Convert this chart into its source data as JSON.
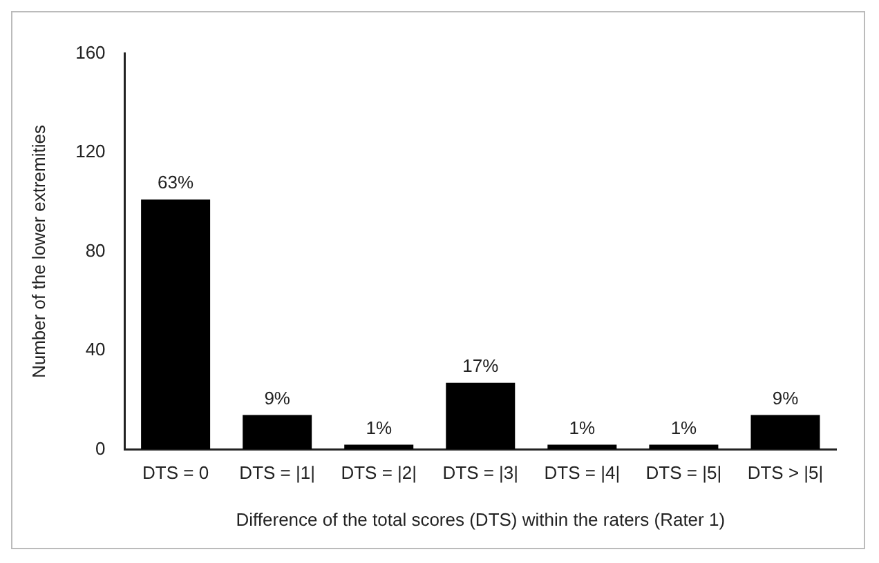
{
  "chart_data": {
    "type": "bar",
    "xlabel": "Difference of the total scores (DTS) within the raters (Rater 1)",
    "ylabel": "Number of the lower extremities",
    "categories": [
      "DTS = 0",
      "DTS = |1|",
      "DTS = |2|",
      "DTS = |3|",
      "DTS = |4|",
      "DTS = |5|",
      "DTS > |5|"
    ],
    "values": [
      101,
      14,
      2,
      27,
      2,
      2,
      14
    ],
    "annotations": [
      {
        "text": "63%",
        "x": "DTS = 0",
        "y": 101
      },
      {
        "text": "9%",
        "x": "DTS = |1|",
        "y": 14
      },
      {
        "text": "1%",
        "x": "DTS = |2|",
        "y": 2
      },
      {
        "text": "17%",
        "x": "DTS = |3|",
        "y": 27
      },
      {
        "text": "1%",
        "x": "DTS = |4|",
        "y": 2
      },
      {
        "text": "1%",
        "x": "DTS = |5|",
        "y": 2
      },
      {
        "text": "9%",
        "x": "DTS > |5|",
        "y": 14
      }
    ],
    "color": "#000000",
    "ylim": [
      0,
      160
    ],
    "yticks": [
      0,
      40,
      80,
      120,
      160
    ],
    "grid": false,
    "legend": false
  }
}
